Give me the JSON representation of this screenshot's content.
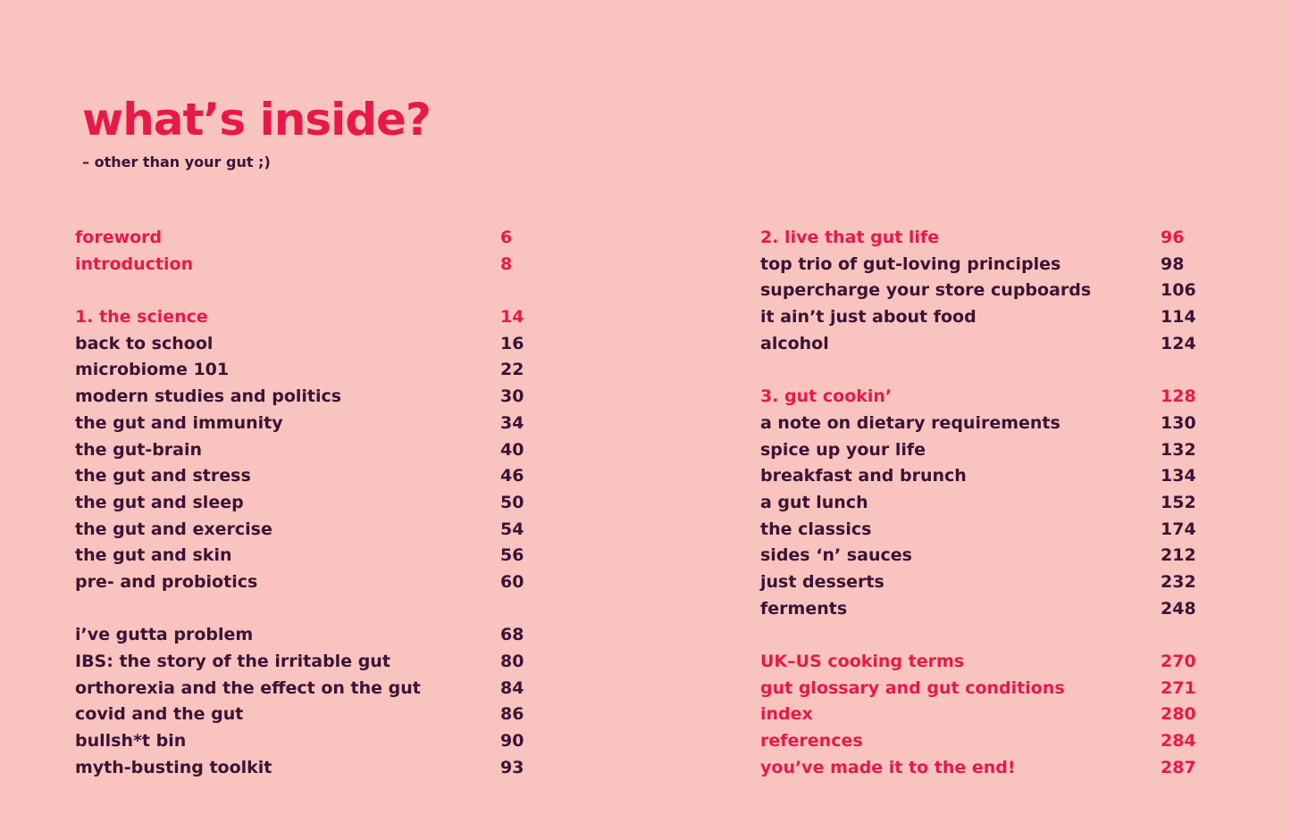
{
  "title": "what’s inside?",
  "subtitle": "– other than your gut ;)",
  "left_column": [
    {
      "label": "foreword",
      "page": "6",
      "hl": true
    },
    {
      "label": "introduction",
      "page": "8",
      "hl": true
    },
    {
      "label": "1. the science",
      "page": "14",
      "hl": true,
      "gap": true
    },
    {
      "label": "back to school",
      "page": "16"
    },
    {
      "label": "microbiome 101",
      "page": "22"
    },
    {
      "label": "modern studies and politics",
      "page": "30"
    },
    {
      "label": "the gut and immunity",
      "page": "34"
    },
    {
      "label": "the gut-brain",
      "page": "40"
    },
    {
      "label": "the gut and stress",
      "page": "46"
    },
    {
      "label": "the gut and sleep",
      "page": "50"
    },
    {
      "label": "the gut and exercise",
      "page": "54"
    },
    {
      "label": "the gut and skin",
      "page": "56"
    },
    {
      "label": "pre- and probiotics",
      "page": "60"
    },
    {
      "label": "i’ve gutta problem",
      "page": "68",
      "gap": true
    },
    {
      "label": "IBS: the story of the irritable gut",
      "page": "80"
    },
    {
      "label": "orthorexia and the effect on the gut",
      "page": "84"
    },
    {
      "label": "covid and the gut",
      "page": "86"
    },
    {
      "label": "bullsh*t bin",
      "page": "90"
    },
    {
      "label": "myth-busting toolkit",
      "page": "93"
    }
  ],
  "right_column": [
    {
      "label": "2. live that gut life",
      "page": "96",
      "hl": true
    },
    {
      "label": "top trio of gut-loving principles",
      "page": "98"
    },
    {
      "label": "supercharge your store cupboards",
      "page": "106"
    },
    {
      "label": "it ain’t just about food",
      "page": "114"
    },
    {
      "label": "alcohol",
      "page": "124"
    },
    {
      "label": "3. gut cookin’",
      "page": "128",
      "hl": true,
      "gap": true
    },
    {
      "label": "a note on dietary requirements",
      "page": "130"
    },
    {
      "label": "spice up your life",
      "page": "132"
    },
    {
      "label": "breakfast and brunch",
      "page": "134"
    },
    {
      "label": "a gut lunch",
      "page": "152"
    },
    {
      "label": "the classics",
      "page": "174"
    },
    {
      "label": "sides ‘n’ sauces",
      "page": "212"
    },
    {
      "label": "just desserts",
      "page": "232"
    },
    {
      "label": "ferments",
      "page": "248"
    },
    {
      "label": "UK–US cooking terms",
      "page": "270",
      "hl": true,
      "gap": true
    },
    {
      "label": "gut glossary and gut conditions",
      "page": "271",
      "hl": true
    },
    {
      "label": "index",
      "page": "280",
      "hl": true
    },
    {
      "label": "references",
      "page": "284",
      "hl": true
    },
    {
      "label": "you’ve made it to the end!",
      "page": "287",
      "hl": true
    }
  ]
}
